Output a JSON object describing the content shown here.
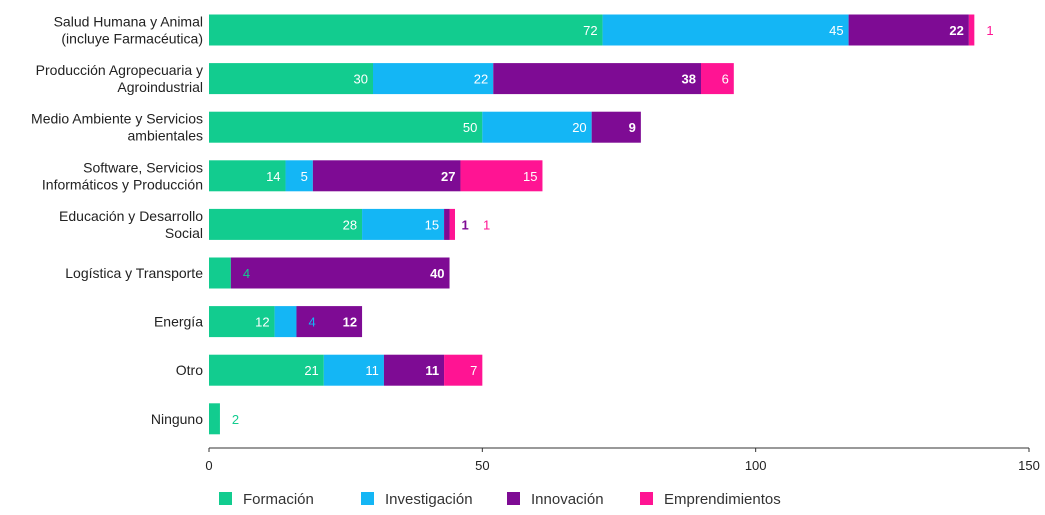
{
  "chart_data": {
    "type": "bar",
    "orientation": "horizontal",
    "stacked": true,
    "categories": [
      [
        "Salud Humana y Animal",
        "(incluye Farmacéutica)"
      ],
      [
        "Producción Agropecuaria y",
        "Agroindustrial"
      ],
      [
        "Medio Ambiente y Servicios",
        "ambientales"
      ],
      [
        "Software, Servicios",
        "Informáticos y Producción"
      ],
      [
        "Educación y Desarrollo",
        "Social"
      ],
      [
        "Logística y Transporte"
      ],
      [
        "Energía"
      ],
      [
        "Otro"
      ],
      [
        "Ninguno"
      ]
    ],
    "series": [
      {
        "name": "Formación",
        "color": "#12cc8f",
        "values": [
          72,
          30,
          50,
          14,
          28,
          4,
          12,
          21,
          2
        ]
      },
      {
        "name": "Investigación",
        "color": "#14b6f5",
        "values": [
          45,
          22,
          20,
          5,
          15,
          0,
          4,
          11,
          0
        ]
      },
      {
        "name": "Innovación",
        "color": "#7e0b94",
        "values": [
          22,
          38,
          9,
          27,
          1,
          40,
          12,
          11,
          0
        ]
      },
      {
        "name": "Emprendimientos",
        "color": "#ff1493",
        "values": [
          1,
          6,
          0,
          15,
          1,
          0,
          0,
          7,
          0
        ]
      }
    ],
    "xlim": [
      0,
      150
    ],
    "xticks": [
      0,
      50,
      100,
      150
    ],
    "legend_position": "bottom",
    "grid": false
  }
}
